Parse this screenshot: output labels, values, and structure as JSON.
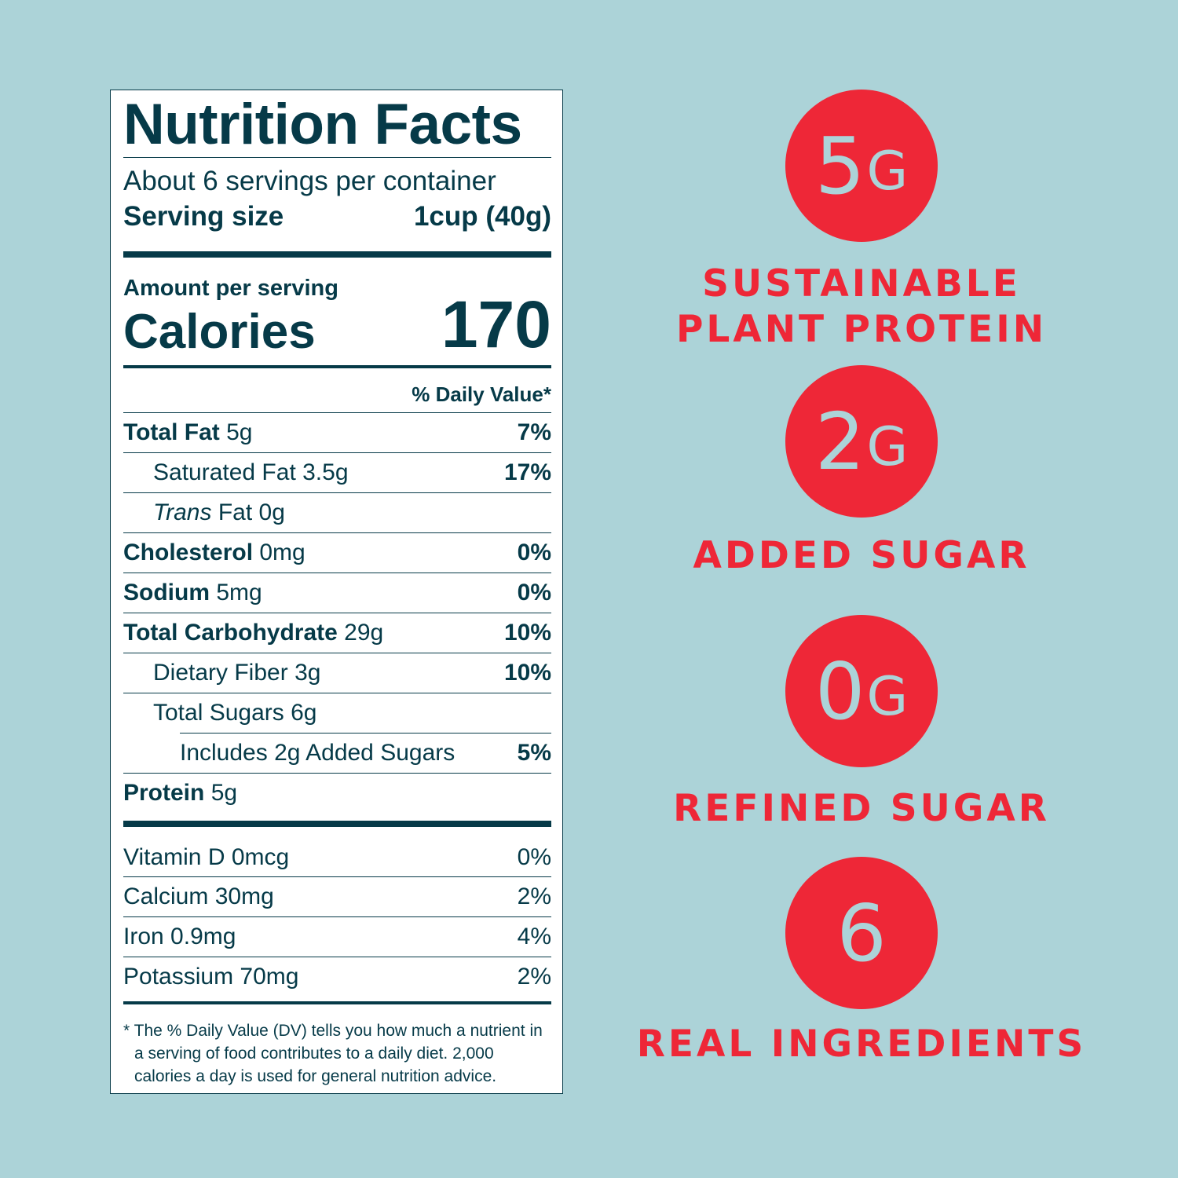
{
  "label": {
    "title": "Nutrition Facts",
    "servings": "About 6 servings per container",
    "serving_size_label": "Serving size",
    "serving_size": "1cup (40g)",
    "amount_per_serving": "Amount per serving",
    "calories_label": "Calories",
    "calories": "170",
    "dv_header": "% Daily Value*",
    "nutrients": [
      {
        "name": "Total Fat",
        "amount": "5g",
        "dv": "7%"
      },
      {
        "name": "Saturated Fat",
        "amount": "3.5g",
        "dv": "17%"
      },
      {
        "name_italic": "Trans",
        "name": "Fat",
        "amount": "0g"
      },
      {
        "name": "Cholesterol",
        "amount": "0mg",
        "dv": "0%"
      },
      {
        "name": "Sodium",
        "amount": "5mg",
        "dv": "0%"
      },
      {
        "name": "Total Carbohydrate",
        "amount": "29g",
        "dv": "10%"
      },
      {
        "name": "Dietary Fiber",
        "amount": "3g",
        "dv": "10%"
      },
      {
        "name": "Total Sugars",
        "amount": "6g"
      },
      {
        "name": "Includes 2g Added Sugars",
        "dv": "5%"
      },
      {
        "name": "Protein",
        "amount": "5g"
      }
    ],
    "vitamins": [
      {
        "name": "Vitamin D",
        "amount": "0mcg",
        "dv": "0%"
      },
      {
        "name": "Calcium",
        "amount": "30mg",
        "dv": "2%"
      },
      {
        "name": "Iron",
        "amount": "0.9mg",
        "dv": "4%"
      },
      {
        "name": "Potassium",
        "amount": "70mg",
        "dv": "2%"
      }
    ],
    "footnote": "* The % Daily Value (DV) tells you how much a nutrient in a serving of food contributes to a daily diet. 2,000 calories a day is used for general nutrition advice."
  },
  "badges": [
    {
      "value": "5",
      "unit": "G",
      "caption": [
        "SUSTAINABLE",
        "PLANT PROTEIN"
      ]
    },
    {
      "value": "2",
      "unit": "G",
      "caption": [
        "ADDED SUGAR"
      ]
    },
    {
      "value": "0",
      "unit": "G",
      "caption": [
        "REFINED SUGAR"
      ]
    },
    {
      "value": "6",
      "caption": [
        "REAL INGREDIENTS"
      ]
    }
  ]
}
